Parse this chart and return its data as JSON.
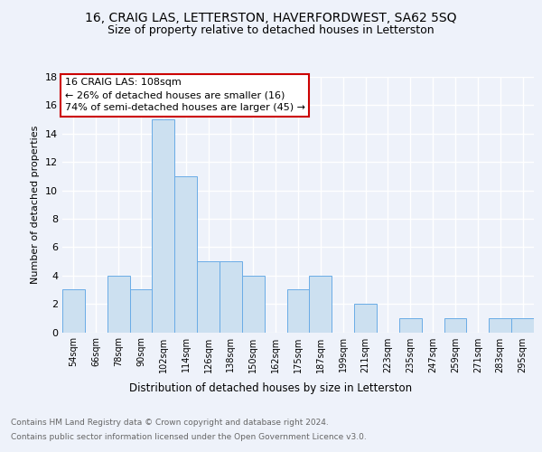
{
  "title1": "16, CRAIG LAS, LETTERSTON, HAVERFORDWEST, SA62 5SQ",
  "title2": "Size of property relative to detached houses in Letterston",
  "xlabel": "Distribution of detached houses by size in Letterston",
  "ylabel": "Number of detached properties",
  "categories": [
    "54sqm",
    "66sqm",
    "78sqm",
    "90sqm",
    "102sqm",
    "114sqm",
    "126sqm",
    "138sqm",
    "150sqm",
    "162sqm",
    "175sqm",
    "187sqm",
    "199sqm",
    "211sqm",
    "223sqm",
    "235sqm",
    "247sqm",
    "259sqm",
    "271sqm",
    "283sqm",
    "295sqm"
  ],
  "values": [
    3,
    0,
    4,
    3,
    15,
    11,
    5,
    5,
    4,
    0,
    3,
    4,
    0,
    2,
    0,
    1,
    0,
    1,
    0,
    1,
    1
  ],
  "bar_color": "#cce0f0",
  "bar_edge_color": "#6aace6",
  "annotation_title": "16 CRAIG LAS: 108sqm",
  "annotation_line1": "← 26% of detached houses are smaller (16)",
  "annotation_line2": "74% of semi-detached houses are larger (45) →",
  "annotation_box_color": "#ffffff",
  "annotation_box_edge": "#cc0000",
  "footer1": "Contains HM Land Registry data © Crown copyright and database right 2024.",
  "footer2": "Contains public sector information licensed under the Open Government Licence v3.0.",
  "ylim": [
    0,
    18
  ],
  "yticks": [
    0,
    2,
    4,
    6,
    8,
    10,
    12,
    14,
    16,
    18
  ],
  "background_color": "#eef2fa",
  "grid_color": "#ffffff",
  "title1_fontsize": 10,
  "title2_fontsize": 9,
  "ylabel_fontsize": 8,
  "xtick_fontsize": 7,
  "ytick_fontsize": 8,
  "xlabel_fontsize": 8.5,
  "footer_fontsize": 6.5,
  "annot_fontsize": 8
}
